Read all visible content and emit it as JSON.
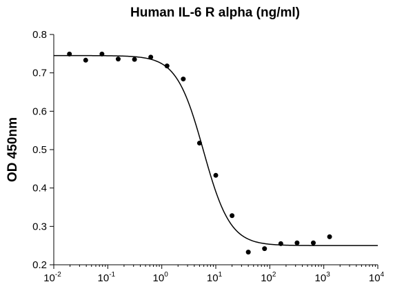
{
  "chart_data": {
    "type": "scatter",
    "title": "Human IL-6 R alpha (ng/ml)",
    "xlabel": "",
    "ylabel": "OD 450nm",
    "x_scale": "log10",
    "xlim": [
      0.01,
      10000
    ],
    "ylim": [
      0.2,
      0.8
    ],
    "x_ticks": [
      {
        "base": "10",
        "exp": "-2"
      },
      {
        "base": "10",
        "exp": "-1"
      },
      {
        "base": "10",
        "exp": "0"
      },
      {
        "base": "10",
        "exp": "1"
      },
      {
        "base": "10",
        "exp": "2"
      },
      {
        "base": "10",
        "exp": "3"
      },
      {
        "base": "10",
        "exp": "4"
      }
    ],
    "y_ticks": [
      "0.2",
      "0.3",
      "0.4",
      "0.5",
      "0.6",
      "0.7",
      "0.8"
    ],
    "grid": false,
    "legend": "none",
    "series": [
      {
        "kind": "points",
        "x": [
          0.0195,
          0.039,
          0.078,
          0.156,
          0.3125,
          0.625,
          1.25,
          2.5,
          5,
          10,
          20,
          40,
          80,
          160,
          320,
          640,
          1280
        ],
        "y": [
          0.749,
          0.733,
          0.749,
          0.736,
          0.735,
          0.741,
          0.718,
          0.684,
          0.517,
          0.433,
          0.328,
          0.233,
          0.242,
          0.255,
          0.257,
          0.257,
          0.273
        ]
      },
      {
        "kind": "fit-curve",
        "model": "4PL",
        "top": 0.745,
        "bottom": 0.25,
        "ec50": 5.9,
        "hill": 1.75
      }
    ]
  }
}
